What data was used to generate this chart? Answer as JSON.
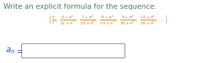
{
  "title": "Write an explicit formula for the sequence:",
  "title_fontsize": 7.5,
  "title_color": "#4a7c59",
  "sequence_color": "#c87a1a",
  "an_color_a": "#2255aa",
  "an_color_n": "#c87a1a",
  "background_color": "#ffffff",
  "box_edge_color": "#888888",
  "box_face_color": "#ffffff",
  "nums": [
    "4",
    "6-\\pi^1",
    "7-\\pi^2",
    "8-\\pi^3",
    "9-\\pi^4",
    "10-\\pi^5"
  ],
  "dens": [
    "7",
    "12+\\pi^1",
    "18+\\pi^2",
    "24+\\pi^3",
    "30+\\pi^4",
    "36+\\pi^5"
  ],
  "seq_fontsize": 6.0,
  "an_fontsize": 8.5
}
